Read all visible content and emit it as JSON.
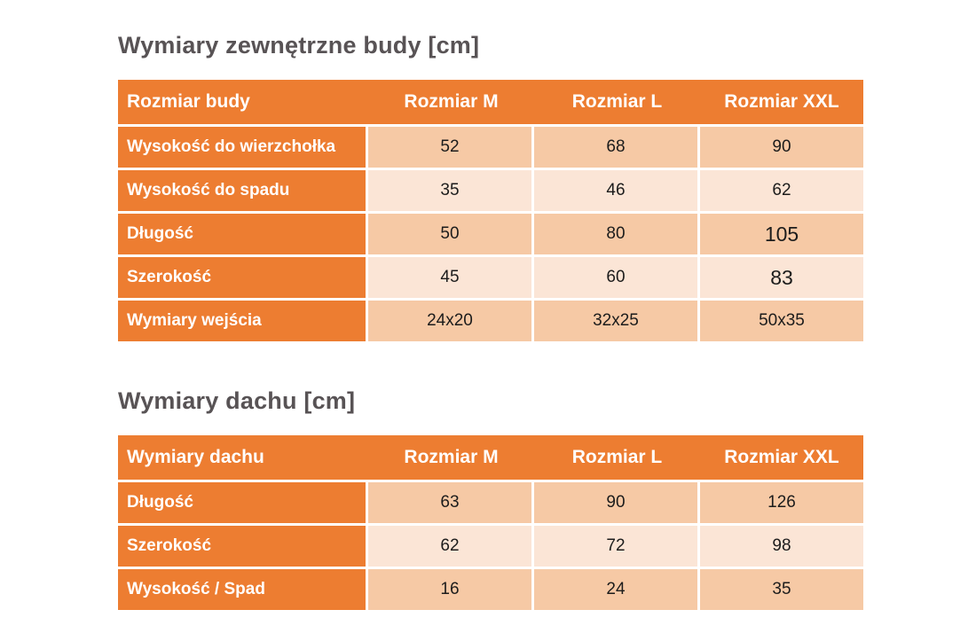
{
  "theme": {
    "accent_orange": "#ED7D31",
    "band_dark": "#F6C9A5",
    "band_light": "#FBE5D6",
    "title_color": "#585355",
    "value_color": "#1c1c1c"
  },
  "tables": [
    {
      "title": "Wymiary zewnętrzne budy [cm]",
      "header": [
        "Rozmiar budy",
        "Rozmiar M",
        "Rozmiar L",
        "Rozmiar XXL"
      ],
      "rows": [
        {
          "label": "Wysokość do wierzchołka",
          "values": [
            "52",
            "68",
            "90"
          ]
        },
        {
          "label": "Wysokość do spadu",
          "values": [
            "35",
            "46",
            "62"
          ]
        },
        {
          "label": "Długość",
          "values": [
            "50",
            "80",
            "105"
          ]
        },
        {
          "label": "Szerokość",
          "values": [
            "45",
            "60",
            "83"
          ]
        },
        {
          "label": "Wymiary wejścia",
          "values": [
            "24x20",
            "32x25",
            "50x35"
          ]
        }
      ]
    },
    {
      "title": "Wymiary dachu [cm]",
      "header": [
        "Wymiary dachu",
        "Rozmiar M",
        "Rozmiar L",
        "Rozmiar XXL"
      ],
      "rows": [
        {
          "label": "Długość",
          "values": [
            "63",
            "90",
            "126"
          ]
        },
        {
          "label": "Szerokość",
          "values": [
            "62",
            "72",
            "98"
          ]
        },
        {
          "label": "Wysokość / Spad",
          "values": [
            "16",
            "24",
            "35"
          ]
        }
      ]
    }
  ]
}
